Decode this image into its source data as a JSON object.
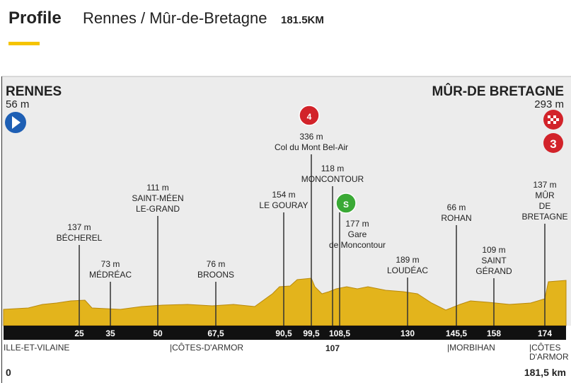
{
  "header": {
    "title": "Profile",
    "subtitle": "Rennes / Mûr-de-Bretagne",
    "distance": "181.5KM"
  },
  "start": {
    "name": "RENNES",
    "altitude": "56 m"
  },
  "finish": {
    "name": "MÛR-DE BRETAGNE",
    "altitude": "293 m",
    "climb_category": "3"
  },
  "points": [
    {
      "km": "25",
      "lines": [
        "137 m",
        "BÉCHEREL"
      ]
    },
    {
      "km": "35",
      "lines": [
        "73 m",
        "MÉDRÉAC"
      ]
    },
    {
      "km": "50",
      "lines": [
        "111 m",
        "SAINT-MÉEN",
        "LE-GRAND"
      ]
    },
    {
      "km": "67,5",
      "lines": [
        "76 m",
        "BROONS"
      ]
    },
    {
      "km": "90,5",
      "lines": [
        "154 m",
        "LE GOURAY"
      ]
    },
    {
      "km": "99,5",
      "lines": [
        "336 m",
        "Col du Mont Bel-Air"
      ],
      "badge": "4"
    },
    {
      "km": "107",
      "lines": [
        "118 m",
        "MONCONTOUR"
      ]
    },
    {
      "km": "108,5",
      "lines": [
        "177 m",
        "Gare",
        "de Moncontour"
      ],
      "badge": "S"
    },
    {
      "km": "130",
      "lines": [
        "189 m",
        "LOUDÉAC"
      ]
    },
    {
      "km": "145,5",
      "lines": [
        "66 m",
        "ROHAN"
      ]
    },
    {
      "km": "158",
      "lines": [
        "109 m",
        "SAINT",
        "GÉRAND"
      ]
    },
    {
      "km": "174",
      "lines": [
        "137 m",
        "MÛR",
        "DE",
        "BRETAGNE"
      ]
    }
  ],
  "regions": [
    {
      "lines": [
        "ILLE-ET-VILAINE"
      ]
    },
    {
      "lines": [
        "|CÔTES-D'ARMOR"
      ]
    },
    {
      "lines": [
        "|MORBIHAN"
      ]
    },
    {
      "lines": [
        "|CÔTES",
        "D'ARMOR"
      ]
    }
  ],
  "axis": {
    "start": "0",
    "end": "181,5 km"
  }
}
